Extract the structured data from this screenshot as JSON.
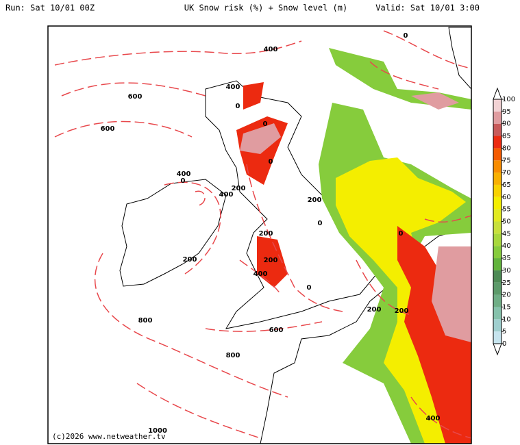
{
  "header": {
    "run": "Run: Sat 10/01 00Z",
    "title": "UK Snow risk (%) + Snow level (m)",
    "valid": "Valid: Sat 10/01 3:00"
  },
  "colorbar": {
    "ticks": [
      0,
      5,
      10,
      15,
      20,
      25,
      30,
      35,
      40,
      45,
      50,
      55,
      60,
      65,
      70,
      75,
      80,
      85,
      90,
      95,
      100
    ],
    "colors": [
      "#c6e4ee",
      "#9fcfcf",
      "#86c2ac",
      "#6fae86",
      "#5c9a6a",
      "#4d8a55",
      "#62b43c",
      "#86cc3c",
      "#a8d83c",
      "#c8e03c",
      "#e2ea20",
      "#f4ee00",
      "#f8d200",
      "#f8b000",
      "#f88c00",
      "#f45a00",
      "#ec2a10",
      "#c85a5a",
      "#e09ca0",
      "#f2d2d4"
    ]
  },
  "contour_labels": [
    "0",
    "400",
    "400",
    "600",
    "0",
    "600",
    "0",
    "0",
    "400",
    "0",
    "200",
    "400",
    "200",
    "0",
    "200",
    "0",
    "200",
    "200",
    "400",
    "0",
    "200",
    "200",
    "800",
    "600",
    "800",
    "400",
    "1000"
  ],
  "credit": "(c)2026 www.netweather.tv"
}
